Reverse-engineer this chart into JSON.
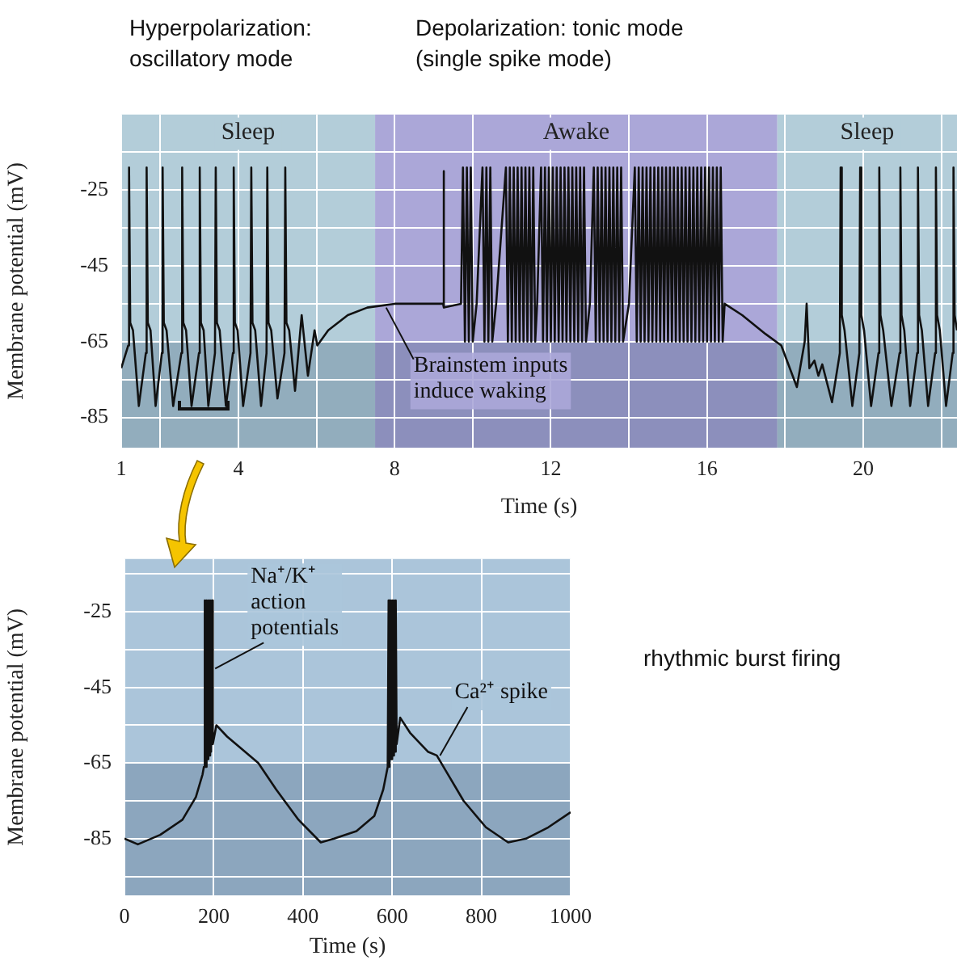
{
  "chart_data": [
    {
      "type": "line",
      "xlabel": "Time (s)",
      "ylabel": "Membrane potential (mV)",
      "grid": true,
      "annotations": [
        "Hyperpolarization:\noscillatory mode",
        "Depolarization: tonic mode\n(single spike mode)",
        {
          "text": "Brainstem inputs\ninduce waking",
          "x": 7.7,
          "y": -56
        }
      ],
      "xlim": [
        1,
        22.4
      ],
      "xticks": [
        1,
        {
          "value": 2,
          "label": null
        },
        4,
        {
          "value": 6,
          "label": null
        },
        8,
        {
          "value": 10,
          "label": null
        },
        12,
        {
          "value": 14,
          "label": null
        },
        16,
        {
          "value": 18,
          "label": null
        },
        20,
        {
          "value": 22,
          "label": null
        }
      ],
      "ylim": [
        -93,
        -5
      ],
      "yticks": [
        -85,
        {
          "value": -75,
          "label": null
        },
        -65,
        {
          "value": -55,
          "label": null
        },
        -45,
        {
          "value": -35,
          "label": null
        },
        -25,
        {
          "value": -15,
          "label": null
        }
      ],
      "bands": [
        {
          "axis": "x",
          "from": 1,
          "to": 7.5,
          "label": "Sleep",
          "color": "#b3cdd9"
        },
        {
          "axis": "x",
          "from": 7.5,
          "to": 17.8,
          "label": "Awake",
          "color": "#aba7d8"
        },
        {
          "axis": "x",
          "from": 17.8,
          "to": 22.4,
          "label": "Sleep",
          "color": "#b3cdd9"
        },
        {
          "axis": "y",
          "from": -93,
          "to": -65,
          "color": "#1f3d5a"
        }
      ],
      "x": [
        1.0,
        1.18,
        1.2,
        1.23,
        1.3,
        1.45,
        1.63,
        1.65,
        1.68,
        1.75,
        1.88,
        2.04,
        2.06,
        2.09,
        2.16,
        2.33,
        2.54,
        2.56,
        2.59,
        2.66,
        2.8,
        2.99,
        3.01,
        3.04,
        3.11,
        3.23,
        3.4,
        3.42,
        3.45,
        3.52,
        3.68,
        3.86,
        3.88,
        3.91,
        3.98,
        4.12,
        4.31,
        4.33,
        4.36,
        4.43,
        4.58,
        4.72,
        4.74,
        4.77,
        4.84,
        5.0,
        5.18,
        5.2,
        5.23,
        5.3,
        5.45,
        5.62,
        5.78,
        5.95,
        6.02,
        6.3,
        6.8,
        7.3,
        8.0,
        9.0,
        9.24,
        9.25,
        9.27,
        9.7,
        9.75,
        9.8,
        9.85,
        9.9,
        9.95,
        10.0,
        10.1,
        10.25,
        10.3,
        10.35,
        10.4,
        10.45,
        10.5,
        10.6,
        10.85,
        10.9,
        10.95,
        11.0,
        11.05,
        11.1,
        11.15,
        11.2,
        11.25,
        11.3,
        11.35,
        11.4,
        11.45,
        11.5,
        11.55,
        11.6,
        11.65,
        11.75,
        11.8,
        11.85,
        11.9,
        11.95,
        12.0,
        12.05,
        12.1,
        12.15,
        12.2,
        12.25,
        12.3,
        12.35,
        12.4,
        12.45,
        12.5,
        12.55,
        12.6,
        12.65,
        12.7,
        12.75,
        12.8,
        12.85,
        12.9,
        13.0,
        13.1,
        13.15,
        13.2,
        13.25,
        13.3,
        13.35,
        13.4,
        13.45,
        13.5,
        13.55,
        13.6,
        13.65,
        13.7,
        13.75,
        13.8,
        13.85,
        14.0,
        14.15,
        14.2,
        14.25,
        14.3,
        14.35,
        14.4,
        14.45,
        14.5,
        14.55,
        14.6,
        14.65,
        14.7,
        14.75,
        14.8,
        14.85,
        14.9,
        14.95,
        15.0,
        15.05,
        15.1,
        15.15,
        15.2,
        15.25,
        15.3,
        15.35,
        15.4,
        15.45,
        15.5,
        15.55,
        15.6,
        15.65,
        15.7,
        15.75,
        15.8,
        15.85,
        15.9,
        15.95,
        16.0,
        16.05,
        16.1,
        16.15,
        16.2,
        16.25,
        16.3,
        16.35,
        16.4,
        16.45,
        16.9,
        17.5,
        17.9,
        18.3,
        18.5,
        18.55,
        18.62,
        18.75,
        18.85,
        18.95,
        19.2,
        19.4,
        19.42,
        19.45,
        19.52,
        19.72,
        19.9,
        19.92,
        19.95,
        20.02,
        20.2,
        20.39,
        20.41,
        20.44,
        20.51,
        20.72,
        20.93,
        20.95,
        20.98,
        21.05,
        21.2,
        21.38,
        21.4,
        21.43,
        21.5,
        21.66,
        21.84,
        21.86,
        21.89,
        21.96,
        22.12,
        22.29,
        22.31,
        22.34,
        22.4
      ],
      "series": [
        {
          "color": "#111111",
          "values": [
            -72,
            -66,
            -19,
            -60,
            -62,
            -82,
            -68,
            -19,
            -60,
            -62,
            -82,
            -68,
            -19,
            -60,
            -62,
            -82,
            -68,
            -19,
            -60,
            -62,
            -82,
            -68,
            -19,
            -60,
            -62,
            -82,
            -68,
            -19,
            -60,
            -62,
            -82,
            -68,
            -19,
            -60,
            -62,
            -82,
            -68,
            -19,
            -60,
            -62,
            -82,
            -68,
            -19,
            -60,
            -62,
            -80,
            -68,
            -19,
            -60,
            -62,
            -78,
            -58,
            -74,
            -62,
            -66,
            -62,
            -58,
            -56,
            -55,
            -55,
            -55,
            -20,
            -56,
            -55,
            -19,
            -65,
            -19,
            -65,
            -19,
            -65,
            -55,
            -19,
            -65,
            -19,
            -65,
            -19,
            -65,
            -55,
            -19,
            -65,
            -19,
            -65,
            -19,
            -65,
            -19,
            -65,
            -19,
            -65,
            -19,
            -65,
            -19,
            -65,
            -19,
            -65,
            -55,
            -19,
            -65,
            -19,
            -65,
            -19,
            -65,
            -19,
            -65,
            -19,
            -65,
            -19,
            -65,
            -19,
            -65,
            -19,
            -65,
            -19,
            -65,
            -19,
            -65,
            -19,
            -65,
            -19,
            -65,
            -55,
            -19,
            -65,
            -19,
            -65,
            -19,
            -65,
            -19,
            -65,
            -19,
            -65,
            -19,
            -65,
            -19,
            -65,
            -19,
            -65,
            -55,
            -19,
            -65,
            -19,
            -65,
            -19,
            -65,
            -19,
            -65,
            -19,
            -65,
            -19,
            -65,
            -19,
            -65,
            -19,
            -65,
            -19,
            -65,
            -19,
            -65,
            -19,
            -65,
            -19,
            -65,
            -19,
            -65,
            -19,
            -65,
            -19,
            -65,
            -19,
            -65,
            -19,
            -65,
            -19,
            -65,
            -19,
            -65,
            -19,
            -65,
            -19,
            -65,
            -19,
            -65,
            -19,
            -65,
            -55,
            -58,
            -63,
            -66,
            -77,
            -65,
            -55,
            -72,
            -70,
            -74,
            -71,
            -81,
            -68,
            -19,
            -58,
            -62,
            -82,
            -68,
            -19,
            -58,
            -62,
            -82,
            -68,
            -19,
            -58,
            -62,
            -82,
            -68,
            -19,
            -58,
            -62,
            -82,
            -68,
            -19,
            -58,
            -62,
            -82,
            -68,
            -19,
            -58,
            -62,
            -82,
            -68,
            -19,
            -58,
            -62
          ]
        }
      ]
    },
    {
      "type": "line",
      "xlabel": "Time (s)",
      "ylabel": "Membrane potential (mV)",
      "grid": true,
      "annotations": [
        {
          "text": "Na⁺/K⁺\naction\npotentials",
          "x": 196,
          "y": -40
        },
        {
          "text": "Ca²⁺ spike",
          "x": 700,
          "y": -63
        },
        "rhythmic burst firing"
      ],
      "xlim": [
        0,
        1000
      ],
      "xticks": [
        0,
        200,
        400,
        600,
        800,
        1000
      ],
      "ylim": [
        -100,
        -11
      ],
      "yticks": [
        {
          "value": -95,
          "label": null
        },
        -85,
        {
          "value": -75,
          "label": null
        },
        -65,
        {
          "value": -55,
          "label": null
        },
        -45,
        {
          "value": -35,
          "label": null
        },
        -25,
        {
          "value": -15,
          "label": null
        }
      ],
      "bands": [
        {
          "axis": "x",
          "from": 0,
          "to": 1000,
          "color": "#abc5da"
        },
        {
          "axis": "y",
          "from": -100,
          "to": -65,
          "color": "#1f3d5a"
        }
      ],
      "x": [
        0,
        30,
        80,
        130,
        160,
        175,
        178,
        180,
        182,
        184,
        186,
        188,
        190,
        192,
        194,
        196,
        198,
        206,
        230,
        260,
        300,
        340,
        390,
        440,
        470,
        520,
        560,
        580,
        590,
        592,
        594,
        596,
        598,
        600,
        602,
        604,
        606,
        608,
        610,
        618,
        640,
        680,
        700,
        720,
        760,
        810,
        860,
        900,
        950,
        1000
      ],
      "series": [
        {
          "color": "#111111",
          "values": [
            -85,
            -86.5,
            -84,
            -80,
            -74,
            -68,
            -66,
            -22,
            -66,
            -22,
            -64,
            -22,
            -63,
            -22,
            -62,
            -22,
            -60,
            -55,
            -58,
            -61,
            -65,
            -72,
            -80,
            -86,
            -85,
            -83,
            -79,
            -72,
            -66,
            -22,
            -66,
            -22,
            -64,
            -22,
            -63,
            -22,
            -62,
            -22,
            -60,
            -53,
            -57,
            -62,
            -63,
            -67,
            -75,
            -82,
            -86,
            -85,
            -82,
            -78
          ]
        }
      ]
    }
  ]
}
